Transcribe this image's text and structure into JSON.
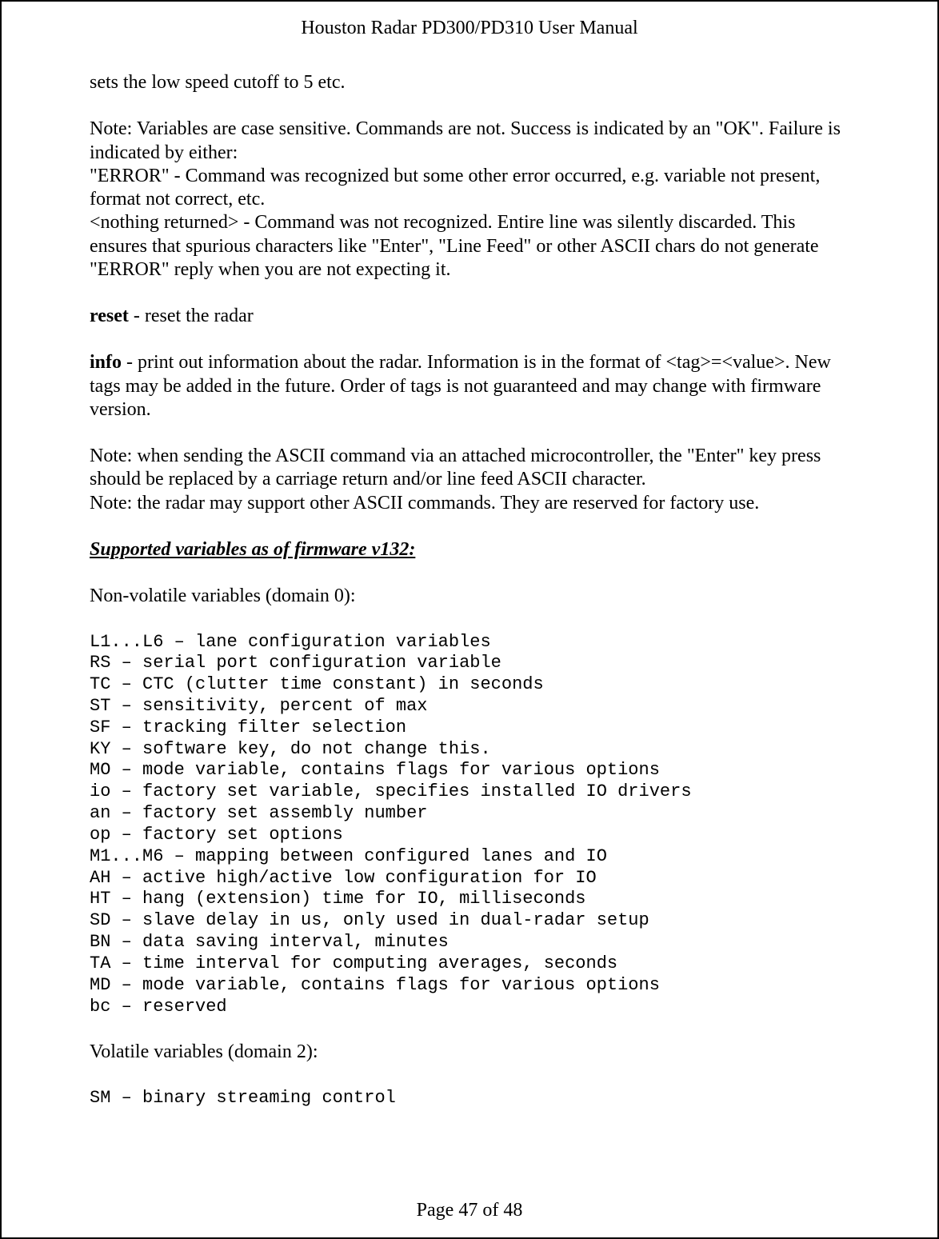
{
  "header": {
    "title": "Houston Radar PD300/PD310 User Manual"
  },
  "paragraphs": {
    "p1": "sets the low speed cutoff to 5 etc.",
    "p2a": "Note: Variables are case sensitive. Commands are not. Success is indicated by an \"OK\". Failure is indicated by either:",
    "p2b": "\"ERROR\" - Command was recognized but some other error occurred, e.g. variable not present, format not correct, etc.",
    "p2c": "<nothing returned> - Command was not recognized. Entire line was silently discarded. This ensures that spurious characters like \"Enter\", \"Line Feed\" or other ASCII chars do not generate \"ERROR\" reply when you are not expecting it.",
    "reset_cmd": "reset",
    "reset_desc": " - reset the radar",
    "info_cmd": "info",
    "info_desc": " - print out information about the radar. Information is in the format of <tag>=<value>. New tags may be added in the future. Order of tags is not guaranteed and may change with firmware version.",
    "note1": "Note: when sending the ASCII command via an attached microcontroller, the \"Enter\" key press should be replaced by a carriage return and/or line feed ASCII character.",
    "note2": "Note: the radar may support other ASCII commands. They are reserved for factory use.",
    "section_title": "Supported variables as of firmware v132:",
    "nonvolatile_heading": "Non-volatile variables (domain 0):",
    "volatile_heading": "Volatile variables (domain 2):"
  },
  "code_blocks": {
    "nonvolatile": "L1...L6 – lane configuration variables\nRS – serial port configuration variable\nTC – CTC (clutter time constant) in seconds\nST – sensitivity, percent of max\nSF – tracking filter selection\nKY – software key, do not change this.\nMO – mode variable, contains flags for various options\nio – factory set variable, specifies installed IO drivers\nan – factory set assembly number\nop – factory set options\nM1...M6 – mapping between configured lanes and IO\nAH – active high/active low configuration for IO\nHT – hang (extension) time for IO, milliseconds\nSD – slave delay in us, only used in dual-radar setup\nBN – data saving interval, minutes\nTA – time interval for computing averages, seconds\nMD – mode variable, contains flags for various options\nbc – reserved",
    "volatile": "SM – binary streaming control"
  },
  "footer": {
    "page_label": "Page 47 of 48"
  }
}
